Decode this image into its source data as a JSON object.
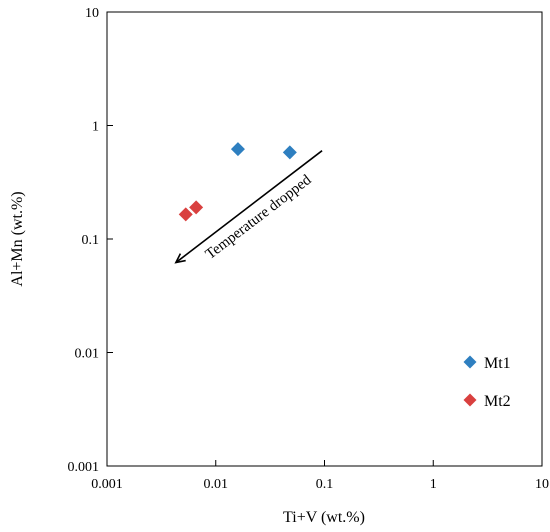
{
  "chart_data": {
    "type": "scatter",
    "xlabel": "Ti+V (wt.%)",
    "ylabel": "Al+Mn (wt.%)",
    "x_scale": "log",
    "y_scale": "log",
    "xlim": [
      0.001,
      10
    ],
    "ylim": [
      0.001,
      10
    ],
    "x_ticks": [
      0.001,
      0.01,
      0.1,
      1,
      10
    ],
    "x_tick_labels": [
      "0.001",
      "0.01",
      "0.1",
      "1",
      "10"
    ],
    "y_ticks": [
      0.001,
      0.01,
      0.1,
      1,
      10
    ],
    "y_tick_labels": [
      "0.001",
      "0.01",
      "0.1",
      "1",
      "10"
    ],
    "grid": false,
    "legend_position": "bottom-right",
    "series": [
      {
        "name": "Mt1",
        "marker": "diamond",
        "color": "#2E7FC0",
        "points": [
          {
            "x": 0.016,
            "y": 0.62
          },
          {
            "x": 0.048,
            "y": 0.58
          }
        ]
      },
      {
        "name": "Mt2",
        "marker": "diamond",
        "color": "#D9403F",
        "points": [
          {
            "x": 0.0053,
            "y": 0.165
          },
          {
            "x": 0.0066,
            "y": 0.19
          }
        ]
      }
    ],
    "annotation": {
      "text": "Temperature dropped",
      "arrow_from": {
        "x": 0.095,
        "y": 0.6
      },
      "arrow_to": {
        "x": 0.0043,
        "y": 0.062
      }
    }
  }
}
